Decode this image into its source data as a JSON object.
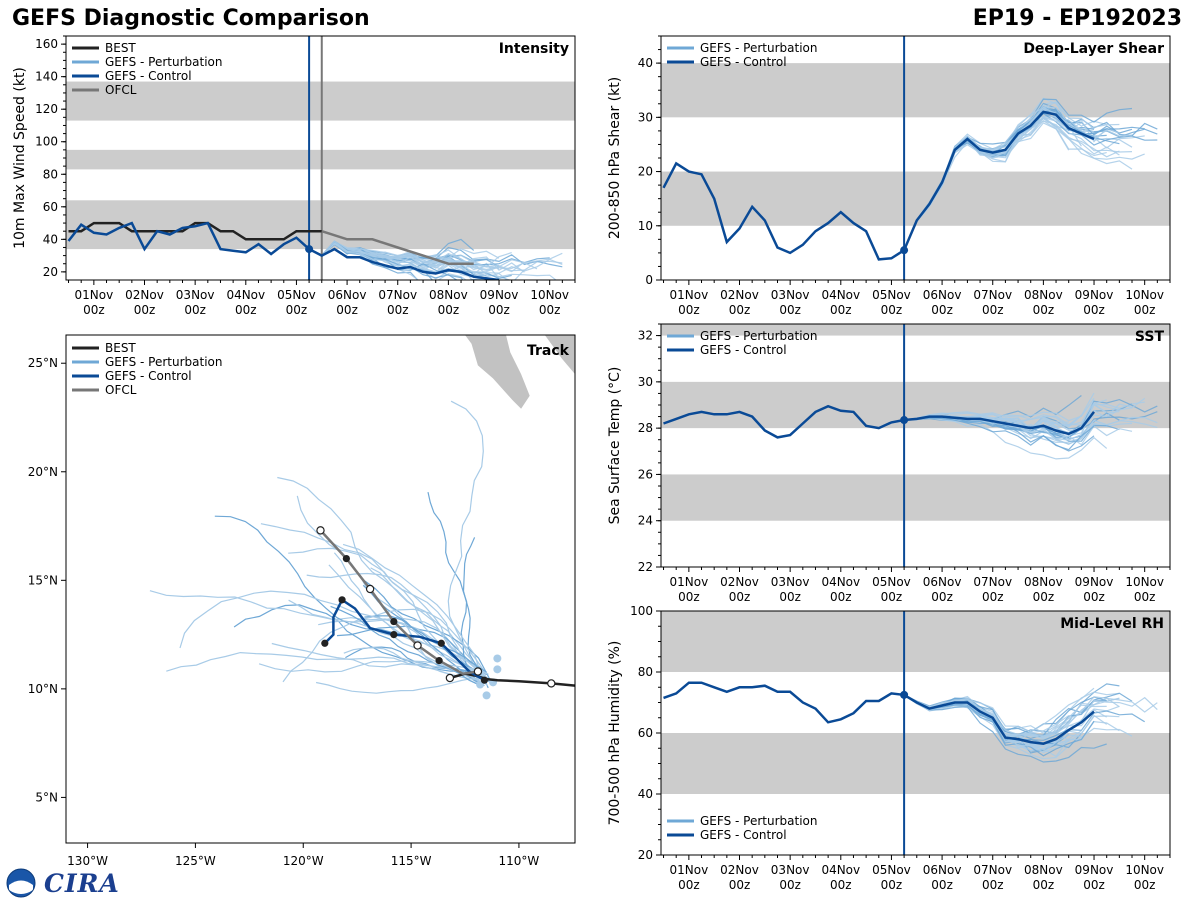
{
  "header": {
    "title": "GEFS Diagnostic Comparison",
    "storm_id": "EP19 - EP192023"
  },
  "colors": {
    "best": "#222222",
    "perturbation": "#6fa8d6",
    "perturbation_light": "#a8cbe7",
    "control": "#0a4a96",
    "ofcl": "#777777",
    "band": "#cccccc",
    "land": "#c2c2c2"
  },
  "logo": {
    "text": "CIRA"
  },
  "time_ticks": [
    {
      "day": "01Nov",
      "hour": "00z"
    },
    {
      "day": "02Nov",
      "hour": "00z"
    },
    {
      "day": "03Nov",
      "hour": "00z"
    },
    {
      "day": "04Nov",
      "hour": "00z"
    },
    {
      "day": "05Nov",
      "hour": "00z"
    },
    {
      "day": "06Nov",
      "hour": "00z"
    },
    {
      "day": "07Nov",
      "hour": "00z"
    },
    {
      "day": "08Nov",
      "hour": "00z"
    },
    {
      "day": "09Nov",
      "hour": "00z"
    },
    {
      "day": "10Nov",
      "hour": "00z"
    }
  ],
  "chart_data": [
    {
      "id": "intensity",
      "type": "line",
      "title": "Intensity",
      "ylabel": "10m Max Wind Speed (kt)",
      "xunit": "days since 01Nov 00z",
      "xlim": [
        -0.55,
        9.5
      ],
      "ylim": [
        15,
        165
      ],
      "yticks": [
        20,
        40,
        60,
        80,
        100,
        120,
        140,
        160
      ],
      "bands": [
        [
          34,
          64
        ],
        [
          83,
          95
        ],
        [
          113,
          137
        ]
      ],
      "init_time": 4.25,
      "ofcl_time": 4.5,
      "legend": [
        {
          "label": "BEST",
          "key": "best"
        },
        {
          "label": "GEFS - Perturbation",
          "key": "perturbation"
        },
        {
          "label": "GEFS - Control",
          "key": "control"
        },
        {
          "label": "OFCL",
          "key": "ofcl"
        }
      ],
      "series": [
        {
          "name": "BEST",
          "key": "best",
          "x": [
            -0.5,
            -0.25,
            0,
            0.25,
            0.5,
            0.75,
            1,
            1.25,
            1.5,
            1.75,
            2,
            2.25,
            2.5,
            2.75,
            3,
            3.25,
            3.5,
            3.75,
            4,
            4.25,
            4.5
          ],
          "y": [
            45,
            45,
            50,
            50,
            50,
            45,
            45,
            45,
            45,
            45,
            50,
            50,
            45,
            45,
            40,
            40,
            40,
            40,
            45,
            45,
            45
          ]
        },
        {
          "name": "GEFS - Control",
          "key": "control",
          "x": [
            -0.5,
            -0.25,
            0,
            0.25,
            0.5,
            0.75,
            1,
            1.25,
            1.5,
            1.75,
            2,
            2.25,
            2.5,
            2.75,
            3,
            3.25,
            3.5,
            3.75,
            4,
            4.25,
            4.5,
            4.75,
            5,
            5.25,
            5.5,
            5.75,
            6,
            6.25,
            6.5,
            6.75,
            7,
            7.25,
            7.5,
            7.75,
            8
          ],
          "y": [
            39,
            49,
            44,
            43,
            47,
            50,
            34,
            45,
            43,
            47,
            48,
            50,
            34,
            33,
            32,
            37,
            31,
            37,
            41,
            34,
            30,
            34,
            29,
            29,
            26,
            24,
            22,
            23,
            20,
            19,
            21,
            20,
            17,
            16,
            15
          ]
        },
        {
          "name": "OFCL",
          "key": "ofcl",
          "x": [
            4.5,
            5,
            5.5,
            6,
            6.5,
            7,
            7.5
          ],
          "y": [
            45,
            40,
            40,
            35,
            30,
            25,
            25
          ]
        }
      ]
    },
    {
      "id": "shear",
      "type": "line",
      "title": "Deep-Layer Shear",
      "ylabel": "200-850 hPa Shear (kt)",
      "xunit": "days since 01Nov 00z",
      "xlim": [
        -0.55,
        9.5
      ],
      "ylim": [
        0,
        45
      ],
      "yticks": [
        0,
        10,
        20,
        30,
        40
      ],
      "bands": [
        [
          10,
          20
        ],
        [
          30,
          40
        ]
      ],
      "init_time": 4.25,
      "legend": [
        {
          "label": "GEFS - Perturbation",
          "key": "perturbation"
        },
        {
          "label": "GEFS - Control",
          "key": "control"
        }
      ],
      "series": [
        {
          "name": "GEFS - Control",
          "key": "control",
          "x": [
            -0.5,
            -0.25,
            0,
            0.25,
            0.5,
            0.75,
            1,
            1.25,
            1.5,
            1.75,
            2,
            2.25,
            2.5,
            2.75,
            3,
            3.25,
            3.5,
            3.75,
            4,
            4.25,
            4.5,
            4.75,
            5,
            5.25,
            5.5,
            5.75,
            6,
            6.25,
            6.5,
            6.75,
            7,
            7.25,
            7.5,
            7.75,
            8
          ],
          "y": [
            17,
            21.5,
            20,
            19.5,
            15,
            7,
            9.5,
            13.5,
            11,
            6,
            5,
            6.5,
            9,
            10.5,
            12.5,
            10.5,
            9,
            3.8,
            4,
            5.5,
            11,
            14,
            18,
            24,
            26,
            24,
            23.5,
            24,
            27,
            28.5,
            31,
            30.5,
            28,
            27,
            26
          ]
        }
      ]
    },
    {
      "id": "sst",
      "type": "line",
      "title": "SST",
      "ylabel": "Sea Surface Temp (°C)",
      "xunit": "days since 01Nov 00z",
      "xlim": [
        -0.55,
        9.5
      ],
      "ylim": [
        22,
        32.5
      ],
      "yticks": [
        22,
        24,
        26,
        28,
        30,
        32
      ],
      "bands": [
        [
          24,
          26
        ],
        [
          28,
          30
        ],
        [
          32,
          34
        ]
      ],
      "init_time": 4.25,
      "legend": [
        {
          "label": "GEFS - Perturbation",
          "key": "perturbation"
        },
        {
          "label": "GEFS - Control",
          "key": "control"
        }
      ],
      "series": [
        {
          "name": "GEFS - Control",
          "key": "control",
          "x": [
            -0.5,
            -0.25,
            0,
            0.25,
            0.5,
            0.75,
            1,
            1.25,
            1.5,
            1.75,
            2,
            2.25,
            2.5,
            2.75,
            3,
            3.25,
            3.5,
            3.75,
            4,
            4.25,
            4.5,
            4.75,
            5,
            5.25,
            5.5,
            5.75,
            6,
            6.25,
            6.5,
            6.75,
            7,
            7.25,
            7.5,
            7.75,
            8
          ],
          "y": [
            28.2,
            28.4,
            28.6,
            28.7,
            28.6,
            28.6,
            28.7,
            28.5,
            27.9,
            27.6,
            27.7,
            28.2,
            28.7,
            28.95,
            28.75,
            28.7,
            28.1,
            28.0,
            28.25,
            28.35,
            28.4,
            28.5,
            28.5,
            28.45,
            28.4,
            28.4,
            28.3,
            28.2,
            28.1,
            28.0,
            28.1,
            27.9,
            27.75,
            28.0,
            28.7
          ]
        }
      ]
    },
    {
      "id": "rh",
      "type": "line",
      "title": "Mid-Level RH",
      "ylabel": "700-500 hPa Humidity (%)",
      "xunit": "days since 01Nov 00z",
      "xlim": [
        -0.55,
        9.5
      ],
      "ylim": [
        20,
        100
      ],
      "yticks": [
        20,
        40,
        60,
        80,
        100
      ],
      "bands": [
        [
          40,
          60
        ],
        [
          80,
          100
        ]
      ],
      "init_time": 4.25,
      "legend": [
        {
          "label": "GEFS - Perturbation",
          "key": "perturbation"
        },
        {
          "label": "GEFS - Control",
          "key": "control"
        }
      ],
      "series": [
        {
          "name": "GEFS - Control",
          "key": "control",
          "x": [
            -0.5,
            -0.25,
            0,
            0.25,
            0.5,
            0.75,
            1,
            1.25,
            1.5,
            1.75,
            2,
            2.25,
            2.5,
            2.75,
            3,
            3.25,
            3.5,
            3.75,
            4,
            4.25,
            4.5,
            4.75,
            5,
            5.25,
            5.5,
            5.75,
            6,
            6.25,
            6.5,
            6.75,
            7,
            7.25,
            7.5,
            7.75,
            8
          ],
          "y": [
            71.5,
            73,
            76.5,
            76.5,
            75,
            73.5,
            75,
            75,
            75.5,
            73.5,
            73.5,
            70,
            68,
            63.5,
            64.5,
            66.5,
            70.5,
            70.5,
            73,
            72.5,
            70,
            68,
            69,
            70,
            70,
            67,
            65,
            58.5,
            58,
            57,
            56.5,
            58,
            61,
            63.5,
            67
          ]
        }
      ]
    },
    {
      "id": "track",
      "type": "scatter",
      "title": "Track",
      "xunit": "degrees longitude",
      "yunit": "degrees latitude",
      "xlim": [
        -131,
        -107.4
      ],
      "ylim": [
        2.9,
        26.3
      ],
      "xticks": [
        {
          "v": -130,
          "label": "130°W"
        },
        {
          "v": -125,
          "label": "125°W"
        },
        {
          "v": -120,
          "label": "120°W"
        },
        {
          "v": -115,
          "label": "115°W"
        },
        {
          "v": -110,
          "label": "110°W"
        }
      ],
      "yticks": [
        {
          "v": 5,
          "label": "5°N"
        },
        {
          "v": 10,
          "label": "10°N"
        },
        {
          "v": 15,
          "label": "15°N"
        },
        {
          "v": 20,
          "label": "20°N"
        },
        {
          "v": 25,
          "label": "25°N"
        }
      ],
      "legend": [
        {
          "label": "BEST",
          "key": "best"
        },
        {
          "label": "GEFS - Perturbation",
          "key": "perturbation"
        },
        {
          "label": "GEFS - Control",
          "key": "control"
        },
        {
          "label": "OFCL",
          "key": "ofcl"
        }
      ],
      "series": [
        {
          "name": "BEST",
          "key": "best",
          "lon": [
            -107.4,
            -108.5,
            -110,
            -111,
            -111.5,
            -112,
            -112.5,
            -113.2
          ],
          "lat": [
            10.15,
            10.25,
            10.35,
            10.4,
            10.45,
            10.6,
            10.7,
            10.5
          ],
          "open_markers": [
            1,
            7
          ]
        },
        {
          "name": "GEFS - Control",
          "key": "control",
          "lon": [
            -111.6,
            -112.3,
            -113,
            -113.6,
            -114.6,
            -115.8,
            -116.9,
            -117.6,
            -118.2,
            -118.6,
            -118.6,
            -119.0
          ],
          "lat": [
            10.4,
            10.8,
            11.5,
            12.1,
            12.4,
            12.5,
            12.8,
            13.7,
            14.1,
            13.3,
            12.5,
            12.1
          ],
          "closed_markers": [
            0,
            3,
            5,
            8,
            11
          ]
        },
        {
          "name": "OFCL",
          "key": "ofcl",
          "lon": [
            -111.9,
            -112.6,
            -113.7,
            -114.7,
            -115.8,
            -116.9,
            -118.0,
            -119.2
          ],
          "lat": [
            10.8,
            10.7,
            11.3,
            12.0,
            13.1,
            14.6,
            16.0,
            17.3
          ],
          "open_markers": [
            0,
            3,
            5,
            7
          ],
          "closed_markers": [
            2,
            4,
            6
          ]
        }
      ]
    }
  ]
}
